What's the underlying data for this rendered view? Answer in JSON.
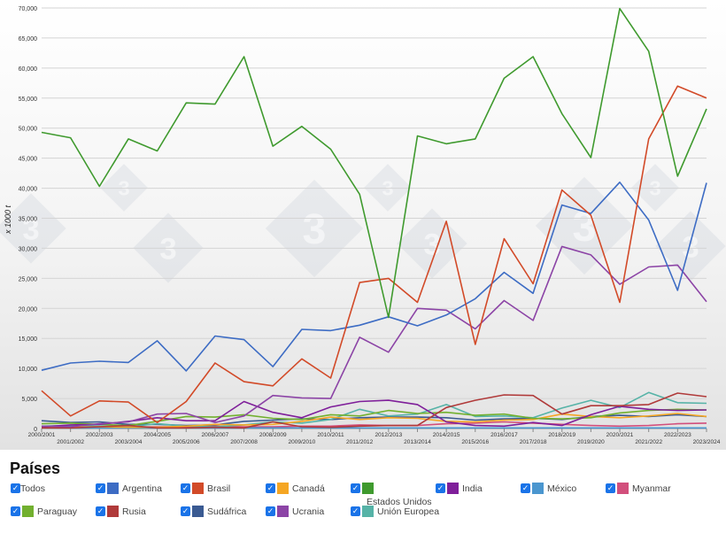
{
  "chart_data": {
    "type": "line",
    "ylabel": "x 1000 t",
    "ylim": [
      0,
      70000
    ],
    "yticks": [
      "0",
      "5,000",
      "10,000",
      "15,000",
      "20,000",
      "25,000",
      "30,000",
      "35,000",
      "40,000",
      "45,000",
      "50,000",
      "55,000",
      "60,000",
      "65,000",
      "70,000"
    ],
    "categories": [
      "2000/2001",
      "2001/2002",
      "2002/2003",
      "2003/2004",
      "2004/2005",
      "2005/2006",
      "2006/2007",
      "2007/2008",
      "2008/2009",
      "2009/2010",
      "2010/2011",
      "2011/2012",
      "2012/2013",
      "2013/2014",
      "2014/2015",
      "2015/2016",
      "2016/2017",
      "2017/2018",
      "2018/2019",
      "2019/2020",
      "2020/2021",
      "2021/2022",
      "2022/2023",
      "2023/2024"
    ],
    "series": [
      {
        "name": "Estados Unidos",
        "color": "#3f9a2e",
        "values": [
          49300,
          48400,
          40300,
          48200,
          46200,
          54200,
          54000,
          61900,
          47000,
          50300,
          46500,
          39000,
          18500,
          48700,
          47400,
          48200,
          58300,
          61900,
          52400,
          45100,
          69900,
          62800,
          42000,
          53200
        ]
      },
      {
        "name": "Brasil",
        "color": "#d24a28",
        "values": [
          6300,
          2100,
          4600,
          4400,
          1000,
          4500,
          10900,
          7800,
          7100,
          11600,
          8400,
          24300,
          25000,
          21000,
          34500,
          14000,
          31600,
          24100,
          39700,
          35500,
          21000,
          48200,
          57000,
          55000
        ]
      },
      {
        "name": "Argentina",
        "color": "#3d6cc4",
        "values": [
          9700,
          10900,
          11200,
          11000,
          14600,
          9600,
          15400,
          14800,
          10300,
          16500,
          16300,
          17200,
          18600,
          17100,
          18900,
          21600,
          26000,
          22500,
          37200,
          35800,
          41000,
          34700,
          23000,
          40900
        ]
      },
      {
        "name": "Ucrania",
        "color": "#8c44a6",
        "values": [
          400,
          300,
          800,
          1100,
          2400,
          2500,
          1000,
          2100,
          5500,
          5100,
          5000,
          15200,
          12700,
          20000,
          19700,
          16600,
          21300,
          18000,
          30300,
          28900,
          24000,
          26900,
          27200,
          21100
        ]
      },
      {
        "name": "Rusia",
        "color": "#b03a3a",
        "values": [
          100,
          100,
          300,
          500,
          100,
          100,
          200,
          100,
          1100,
          300,
          200,
          400,
          500,
          500,
          3500,
          4700,
          5600,
          5500,
          2400,
          3800,
          3800,
          4000,
          5900,
          5300
        ]
      },
      {
        "name": "India",
        "color": "#7f1f9a",
        "values": [
          300,
          600,
          700,
          1200,
          1800,
          1300,
          1300,
          4500,
          2700,
          1800,
          3600,
          4500,
          4700,
          4000,
          1100,
          500,
          400,
          1000,
          500,
          2300,
          3700,
          3200,
          3000,
          3100
        ]
      },
      {
        "name": "Paraguay",
        "color": "#72b02f",
        "values": [
          800,
          900,
          700,
          500,
          1200,
          2000,
          1900,
          2300,
          1700,
          1500,
          2300,
          2100,
          3000,
          2500,
          2700,
          2200,
          2400,
          1700,
          1600,
          1800,
          2600,
          3000,
          3200,
          3100
        ]
      },
      {
        "name": "Canadá",
        "color": "#f5a623",
        "values": [
          100,
          200,
          300,
          200,
          200,
          400,
          700,
          600,
          700,
          1200,
          1900,
          1500,
          1800,
          1700,
          1200,
          1100,
          1400,
          1500,
          2400,
          2000,
          1800,
          2100,
          2500,
          2000
        ]
      },
      {
        "name": "Unión Europea",
        "color": "#56b3a7",
        "values": [
          400,
          500,
          400,
          300,
          800,
          400,
          300,
          600,
          1100,
          900,
          1500,
          3200,
          2100,
          2400,
          4000,
          2000,
          2100,
          1800,
          3400,
          4700,
          3500,
          6000,
          4300,
          4200
        ]
      },
      {
        "name": "Sudáfrica",
        "color": "#3a5a92",
        "values": [
          1300,
          1000,
          1100,
          700,
          700,
          500,
          600,
          1200,
          1400,
          1600,
          1500,
          1800,
          1900,
          1900,
          1800,
          1400,
          1600,
          1700,
          1500,
          2000,
          2200,
          2000,
          2300,
          2000
        ]
      },
      {
        "name": "México",
        "color": "#4a96cf",
        "values": [
          100,
          100,
          100,
          100,
          100,
          100,
          100,
          100,
          100,
          100,
          100,
          100,
          100,
          100,
          100,
          100,
          100,
          100,
          100,
          100,
          100,
          100,
          100,
          100
        ]
      },
      {
        "name": "Myanmar",
        "color": "#d24f7c",
        "values": [
          200,
          200,
          200,
          200,
          300,
          300,
          400,
          300,
          300,
          400,
          400,
          600,
          500,
          500,
          800,
          900,
          1100,
          900,
          700,
          500,
          400,
          500,
          800,
          900
        ]
      }
    ]
  },
  "legend": {
    "title": "Países",
    "items": [
      {
        "label": "Todos"
      },
      {
        "label": "Argentina",
        "color": "#3d6cc4"
      },
      {
        "label": "Brasil",
        "color": "#d24a28"
      },
      {
        "label": "Canadá",
        "color": "#f5a623"
      },
      {
        "label": "Estados Unidos",
        "color": "#3f9a2e"
      },
      {
        "label": "India",
        "color": "#7f1f9a"
      },
      {
        "label": "México",
        "color": "#4a96cf"
      },
      {
        "label": "Myanmar",
        "color": "#d24f7c"
      },
      {
        "label": "Paraguay",
        "color": "#72b02f"
      },
      {
        "label": "Rusia",
        "color": "#b03a3a"
      },
      {
        "label": "Sudáfrica",
        "color": "#3a5a92"
      },
      {
        "label": "Ucrania",
        "color": "#8c44a6"
      },
      {
        "label": "Unión Europea",
        "color": "#56b3a7"
      }
    ]
  },
  "watermark": {
    "glyph": "3"
  }
}
